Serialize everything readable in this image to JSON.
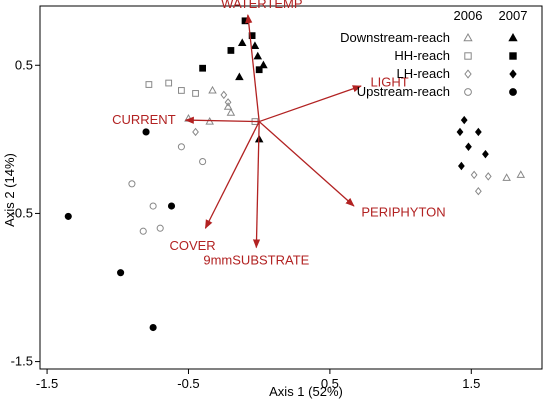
{
  "chart_data": {
    "type": "scatter",
    "title": "",
    "xlabel": "Axis 1 (52%)",
    "ylabel": "Axis 2 (14%)",
    "xlim": [
      -1.55,
      2.0
    ],
    "ylim": [
      -1.55,
      0.9
    ],
    "xticks": [
      -1.5,
      -0.5,
      0.5,
      1.5
    ],
    "xtick_labels": [
      "-1.5",
      "-0.5",
      "0.5",
      "1.5"
    ],
    "yticks": [
      -1.5,
      -0.5,
      0.5
    ],
    "ytick_labels": [
      "-1.5",
      "-0.5",
      "0.5"
    ],
    "grid": false,
    "legend_position": "top-right",
    "legend_years": [
      "2006",
      "2007"
    ],
    "vector_color": "#b22222",
    "vector_origin": [
      0.0,
      0.12
    ],
    "vectors": [
      {
        "label": "WATERTEMP",
        "x": -0.08,
        "y": 0.84
      },
      {
        "label": "LIGHT",
        "x": 0.72,
        "y": 0.36
      },
      {
        "label": "CURRENT",
        "x": -0.52,
        "y": 0.13
      },
      {
        "label": "PERIPHYTON",
        "x": 0.67,
        "y": -0.45
      },
      {
        "label": "COVER",
        "x": -0.38,
        "y": -0.6
      },
      {
        "label": "9mmSUBSTRATE",
        "x": -0.02,
        "y": -0.73
      }
    ],
    "series": [
      {
        "name": "Downstream-reach",
        "year": "2006",
        "marker": "triangle",
        "filled": false,
        "points": [
          [
            -0.33,
            0.33
          ],
          [
            -0.22,
            0.22
          ],
          [
            -0.2,
            0.18
          ],
          [
            -0.35,
            0.12
          ],
          [
            -0.5,
            0.14
          ],
          [
            1.75,
            -0.26
          ],
          [
            1.85,
            -0.24
          ]
        ]
      },
      {
        "name": "Downstream-reach",
        "year": "2007",
        "marker": "triangle",
        "filled": true,
        "points": [
          [
            -0.12,
            0.65
          ],
          [
            -0.03,
            0.63
          ],
          [
            -0.01,
            0.56
          ],
          [
            0.03,
            0.5
          ],
          [
            -0.14,
            0.42
          ],
          [
            0.0,
            0.0
          ]
        ]
      },
      {
        "name": "HH-reach",
        "year": "2006",
        "marker": "square",
        "filled": false,
        "points": [
          [
            -0.78,
            0.37
          ],
          [
            -0.64,
            0.38
          ],
          [
            -0.55,
            0.33
          ],
          [
            -0.45,
            0.31
          ],
          [
            -0.03,
            0.12
          ]
        ]
      },
      {
        "name": "HH-reach",
        "year": "2007",
        "marker": "square",
        "filled": true,
        "points": [
          [
            -0.1,
            0.8
          ],
          [
            -0.05,
            0.7
          ],
          [
            -0.2,
            0.6
          ],
          [
            -0.4,
            0.48
          ],
          [
            0.0,
            0.47
          ]
        ]
      },
      {
        "name": "LH-reach",
        "year": "2006",
        "marker": "diamond",
        "filled": false,
        "points": [
          [
            -0.25,
            0.3
          ],
          [
            -0.22,
            0.25
          ],
          [
            -0.45,
            0.05
          ],
          [
            1.52,
            -0.24
          ],
          [
            1.62,
            -0.25
          ],
          [
            1.55,
            -0.35
          ]
        ]
      },
      {
        "name": "LH-reach",
        "year": "2007",
        "marker": "diamond",
        "filled": true,
        "points": [
          [
            1.45,
            0.13
          ],
          [
            1.42,
            0.05
          ],
          [
            1.55,
            0.05
          ],
          [
            1.48,
            -0.05
          ],
          [
            1.6,
            -0.1
          ],
          [
            1.43,
            -0.18
          ]
        ]
      },
      {
        "name": "Upstream-reach",
        "year": "2006",
        "marker": "circle",
        "filled": false,
        "points": [
          [
            -0.9,
            -0.3
          ],
          [
            -0.75,
            -0.45
          ],
          [
            -0.7,
            -0.6
          ],
          [
            -0.82,
            -0.62
          ],
          [
            -0.55,
            -0.05
          ],
          [
            -0.4,
            -0.15
          ]
        ]
      },
      {
        "name": "Upstream-reach",
        "year": "2007",
        "marker": "circle",
        "filled": true,
        "points": [
          [
            -0.8,
            0.05
          ],
          [
            -1.35,
            -0.52
          ],
          [
            -0.98,
            -0.9
          ],
          [
            -0.62,
            -0.45
          ],
          [
            -0.75,
            -1.27
          ]
        ]
      }
    ]
  }
}
